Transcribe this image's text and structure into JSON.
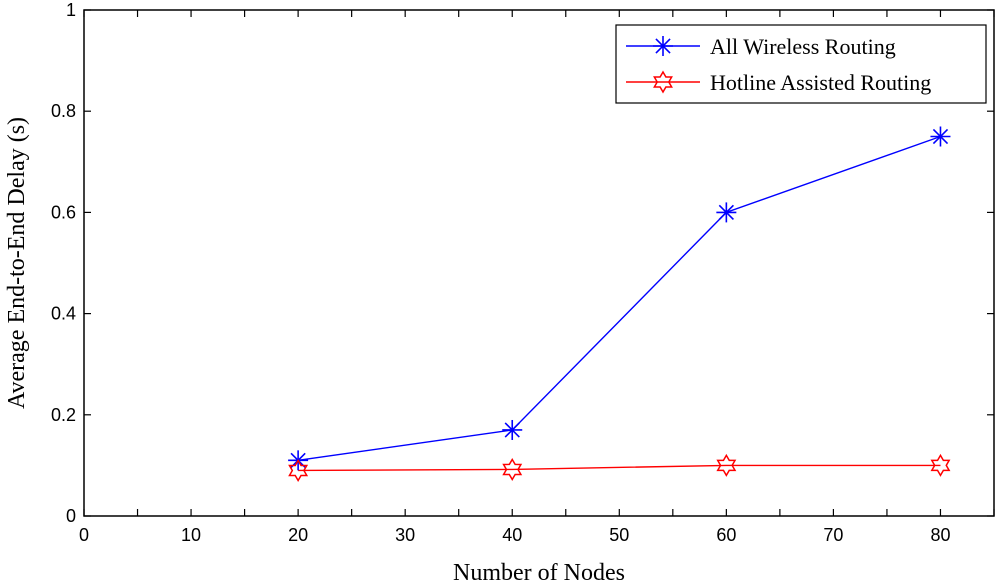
{
  "chart_data": {
    "type": "line",
    "title": "",
    "xlabel": "Number of Nodes",
    "ylabel": "Average End-to-End Delay (s)",
    "xlim": [
      0,
      85
    ],
    "ylim": [
      0,
      1
    ],
    "x_ticks": [
      "0",
      "10",
      "20",
      "30",
      "40",
      "50",
      "60",
      "70",
      "80"
    ],
    "y_ticks": [
      "0",
      "0.2",
      "0.4",
      "0.6",
      "0.8",
      "1"
    ],
    "x": [
      20,
      40,
      60,
      80
    ],
    "grid": false,
    "legend_position": "top-right",
    "series": [
      {
        "name": "All Wireless Routing",
        "values": [
          0.11,
          0.17,
          0.6,
          0.75
        ],
        "color": "#0000ff",
        "marker": "asterisk"
      },
      {
        "name": "Hotline Assisted Routing",
        "values": [
          0.09,
          0.092,
          0.1,
          0.1
        ],
        "color": "#ff0000",
        "marker": "hexagram"
      }
    ]
  }
}
